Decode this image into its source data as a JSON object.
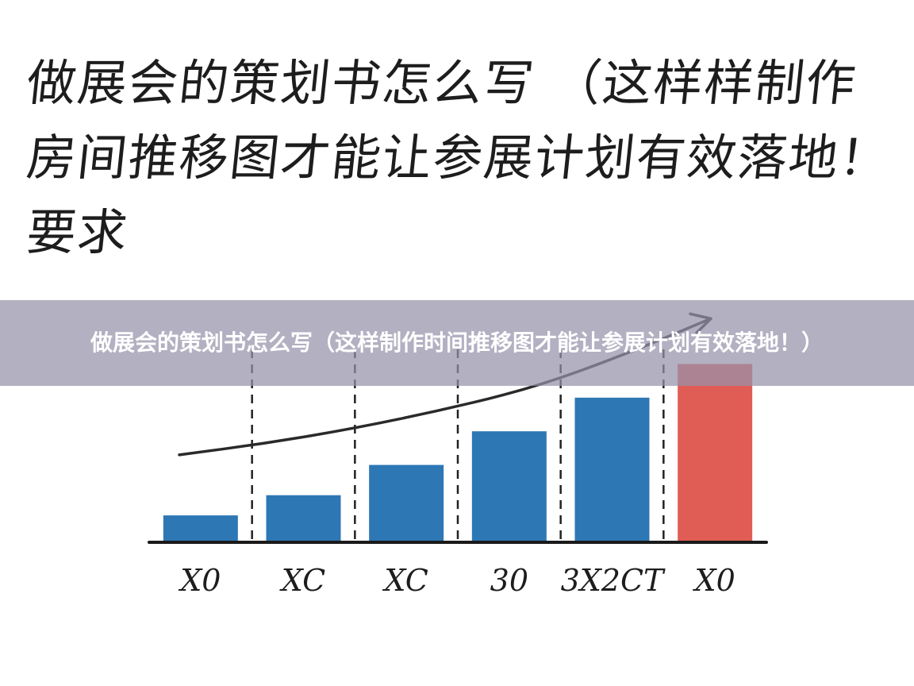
{
  "heading": {
    "line1": "做展会的策划书怎么写 （这样样制作",
    "line2": "房间推移图才能让参展计划有效落地！",
    "line3": "要求"
  },
  "banner": {
    "title": "做展会的策划书怎么写（这样制作时间推移图才能让参展计划有效落地！）"
  },
  "chart_data": {
    "type": "bar",
    "title": "",
    "xlabel": "",
    "ylabel": "",
    "categories": [
      "X0",
      "XC",
      "XC",
      "30",
      "3X2CT",
      "X0"
    ],
    "values": [
      16,
      28,
      46,
      66,
      86,
      106
    ],
    "ylim": [
      0,
      110
    ],
    "trend_line": [
      52,
      59,
      68,
      79,
      92,
      111,
      133
    ],
    "grid": false,
    "legend": false,
    "colors": {
      "bar": "#2d77b4",
      "highlight_bar": "#e05d55",
      "axis": "#1a1a1a",
      "trend": "#2a2a2a",
      "divider": "#222222"
    },
    "highlight_index": 5
  }
}
